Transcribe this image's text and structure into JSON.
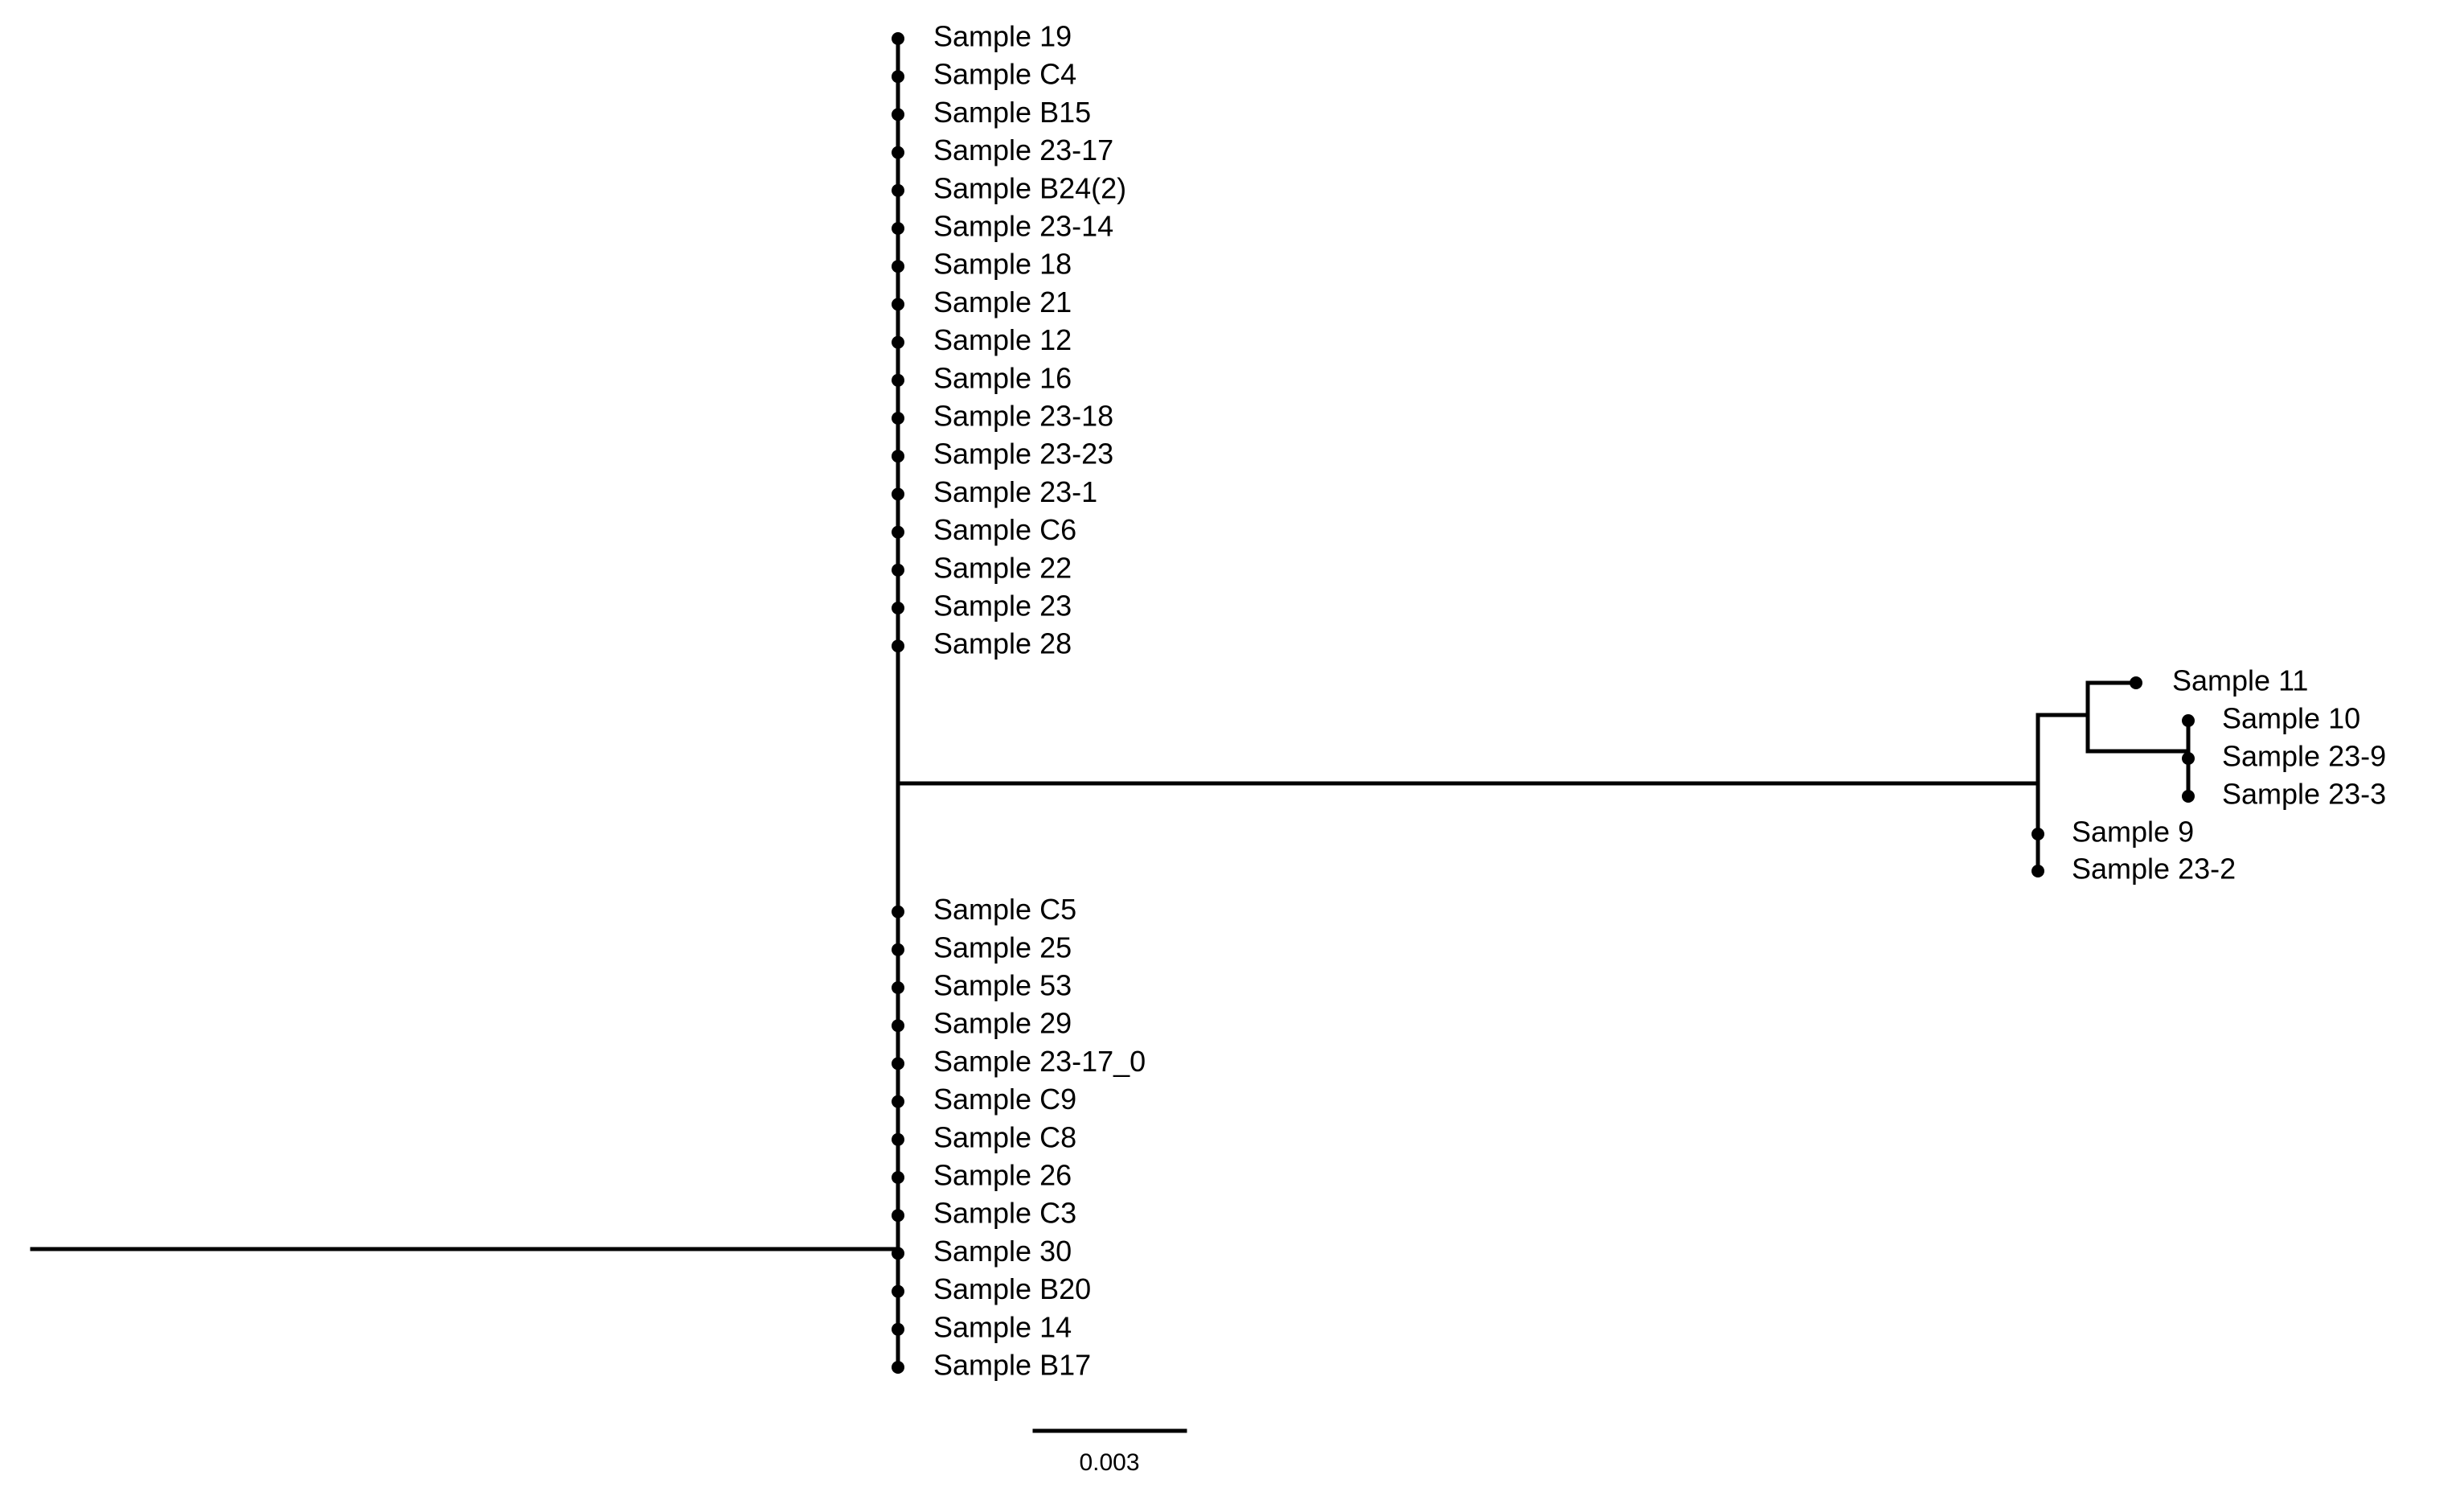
{
  "tree": {
    "line_color": "#000000",
    "main_clade": {
      "upper_leaves": [
        "Sample 19",
        "Sample C4",
        "Sample B15",
        "Sample 23-17",
        "Sample B24(2)",
        "Sample 23-14",
        "Sample 18",
        "Sample 21",
        "Sample 12",
        "Sample 16",
        "Sample 23-18",
        "Sample 23-23",
        "Sample 23-1",
        "Sample C6",
        "Sample 22",
        "Sample 23",
        "Sample 28"
      ],
      "lower_leaves": [
        "Sample C5",
        "Sample 25",
        "Sample 53",
        "Sample 29",
        "Sample 23-17_0",
        "Sample C9",
        "Sample C8",
        "Sample 26",
        "Sample C3",
        "Sample 30",
        "Sample B20",
        "Sample 14",
        "Sample B17"
      ]
    },
    "outlier_clade": {
      "top_leaf": "Sample 11",
      "inner_leaves": [
        "Sample 10",
        "Sample 23-9",
        "Sample 23-3"
      ],
      "basal_leaves": [
        "Sample 9",
        "Sample 23-2"
      ]
    },
    "scale_bar": {
      "label": "0.003",
      "length": 0.003
    }
  }
}
